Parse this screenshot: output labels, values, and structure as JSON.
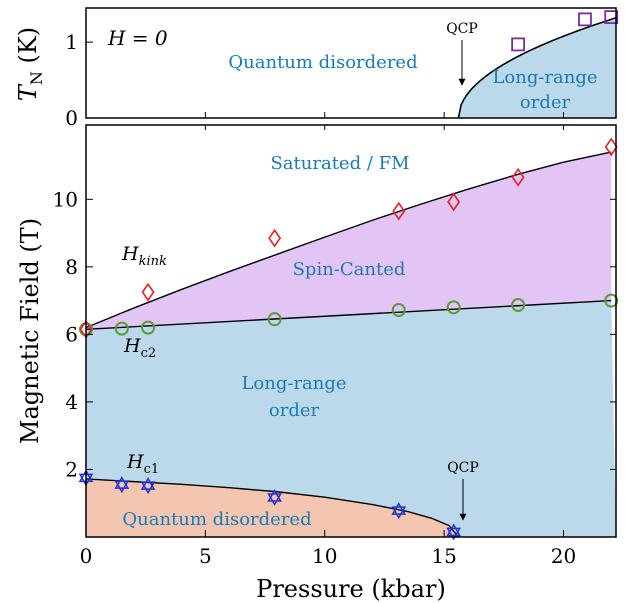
{
  "chart_data": [
    {
      "type": "scatter",
      "panel": "top",
      "xlim": [
        0,
        22.2
      ],
      "ylim": [
        0,
        1.45
      ],
      "ylabel_main": "T",
      "ylabel_sub": "N",
      "ylabel_unit": " (K)",
      "yticks": [
        0,
        1
      ],
      "field_label": "H = 0",
      "qcp_label": "QCP",
      "qcp_pressure": 15.6,
      "regions": {
        "disordered": "Quantum disordered",
        "ordered_line1": "Long-range",
        "ordered_line2": "order"
      },
      "boundary_curve": {
        "pc": 15.6,
        "amplitude": 0.514,
        "exponent": 0.5
      },
      "series": [
        {
          "marker": "square",
          "color": "#7a2b9e",
          "points": [
            [
              18.1,
              0.97
            ],
            [
              20.9,
              1.3
            ],
            [
              22.0,
              1.33
            ]
          ]
        }
      ]
    },
    {
      "type": "scatter",
      "panel": "bottom",
      "xlim": [
        0,
        22.2
      ],
      "ylim": [
        0,
        12.2
      ],
      "xlabel": "Pressure (kbar)",
      "ylabel": "Magnetic Field (T)",
      "xticks": [
        0,
        5,
        10,
        15,
        20
      ],
      "yticks": [
        2,
        4,
        6,
        8,
        10
      ],
      "qcp_label": "QCP",
      "qcp_pressure": 15.6,
      "regions": {
        "saturated": "Saturated / FM",
        "canted": "Spin-Canted",
        "ordered_line1": "Long-range",
        "ordered_line2": "order",
        "disordered": "Quantum disordered"
      },
      "curve_labels": {
        "hkink": "H",
        "hkink_sub": "kink",
        "hc2": "H",
        "hc2_sub": "c2",
        "hc1": "H",
        "hc1_sub": "c1"
      },
      "curves": {
        "hkink": [
          [
            0,
            6.2
          ],
          [
            2,
            6.78
          ],
          [
            4,
            7.33
          ],
          [
            6,
            7.86
          ],
          [
            8,
            8.37
          ],
          [
            10,
            8.88
          ],
          [
            12,
            9.38
          ],
          [
            14,
            9.85
          ],
          [
            16,
            10.3
          ],
          [
            18,
            10.72
          ],
          [
            20,
            11.1
          ],
          [
            22,
            11.4
          ]
        ],
        "hc2": [
          [
            0,
            6.15
          ],
          [
            22,
            7.0
          ]
        ],
        "hc1": [
          [
            0,
            1.72
          ],
          [
            2,
            1.64
          ],
          [
            4,
            1.56
          ],
          [
            6,
            1.46
          ],
          [
            8,
            1.34
          ],
          [
            10,
            1.18
          ],
          [
            12,
            0.96
          ],
          [
            13.5,
            0.75
          ],
          [
            14.5,
            0.55
          ],
          [
            15.2,
            0.34
          ],
          [
            15.6,
            0.0
          ]
        ]
      },
      "series": [
        {
          "name": "H_kink",
          "marker": "diamond",
          "color": "#e8202a",
          "points": [
            [
              0,
              6.15
            ],
            [
              2.6,
              7.25
            ],
            [
              7.9,
              8.85
            ],
            [
              13.1,
              9.65
            ],
            [
              15.4,
              9.92
            ],
            [
              18.1,
              10.65
            ],
            [
              22.0,
              11.55
            ]
          ]
        },
        {
          "name": "H_c2",
          "marker": "circle",
          "color": "#5b9a3a",
          "points": [
            [
              0,
              6.15
            ],
            [
              1.5,
              6.17
            ],
            [
              2.6,
              6.2
            ],
            [
              7.9,
              6.45
            ],
            [
              13.1,
              6.72
            ],
            [
              15.4,
              6.8
            ],
            [
              18.1,
              6.87
            ],
            [
              22.0,
              7.0
            ]
          ]
        },
        {
          "name": "H_c1",
          "marker": "star",
          "color": "#2233cc",
          "points": [
            [
              0,
              1.75
            ],
            [
              1.5,
              1.55
            ],
            [
              2.6,
              1.52
            ],
            [
              7.9,
              1.17
            ],
            [
              13.1,
              0.78
            ],
            [
              15.4,
              0.15
            ]
          ]
        }
      ]
    }
  ]
}
